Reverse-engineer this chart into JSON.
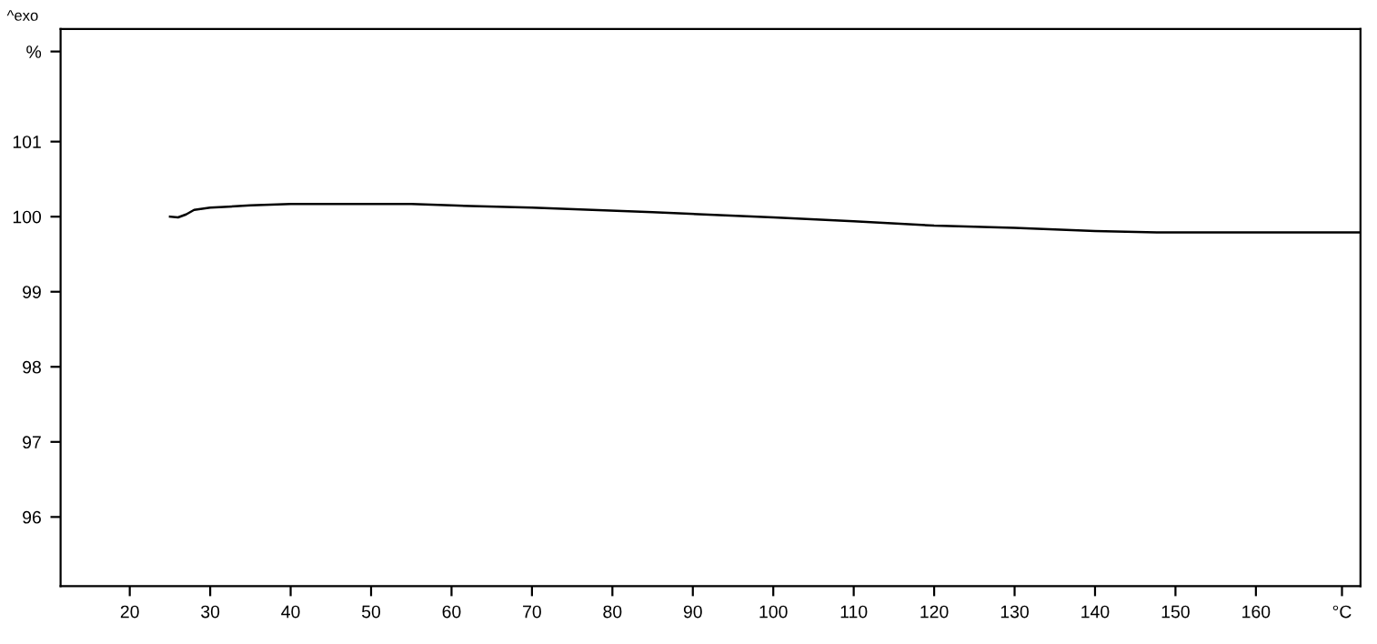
{
  "chart_data": {
    "type": "line",
    "annotations": [
      "^exo"
    ],
    "x": [
      25,
      26,
      27,
      28,
      30,
      35,
      40,
      55,
      60,
      70,
      85,
      100,
      110,
      120,
      130,
      140,
      148,
      173
    ],
    "series": [
      {
        "color": "#000000",
        "values": [
          100.0,
          99.99,
          100.03,
          100.09,
          100.12,
          100.15,
          100.17,
          100.17,
          100.15,
          100.12,
          100.06,
          99.99,
          99.94,
          99.88,
          99.85,
          99.81,
          99.79,
          99.79
        ]
      }
    ],
    "xlim": [
      11.4,
      173
    ],
    "ylim": [
      95.08,
      102.5
    ],
    "xticks": [
      20,
      30,
      40,
      50,
      60,
      70,
      80,
      90,
      100,
      110,
      120,
      130,
      140,
      150,
      160,
      {
        "value": 170.7,
        "label": "°C"
      }
    ],
    "yticks": [
      96,
      97,
      98,
      99,
      100,
      101,
      {
        "value": 102.2,
        "label": "%"
      }
    ],
    "marker": "none",
    "line_style": "solid"
  }
}
